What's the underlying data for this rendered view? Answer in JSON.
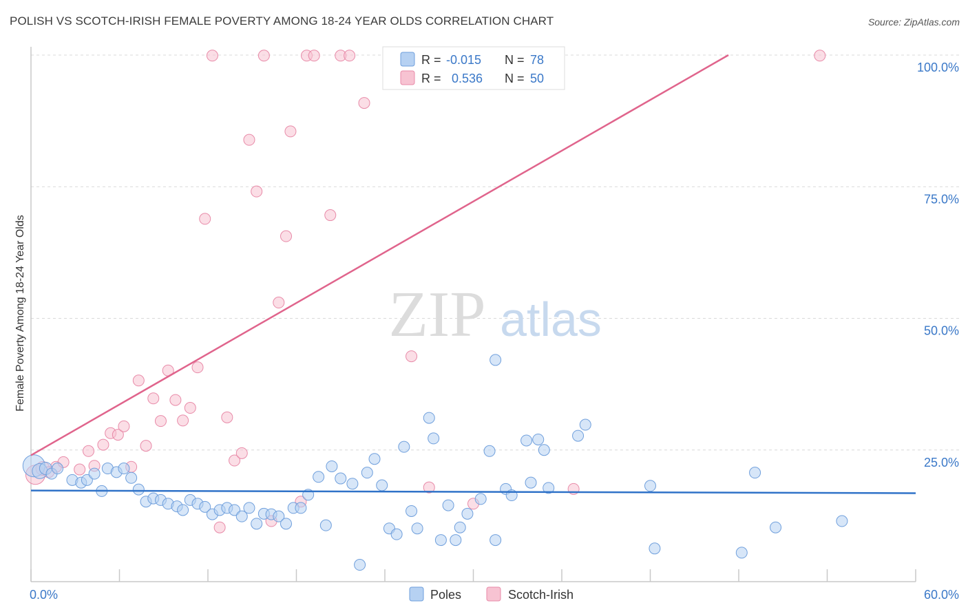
{
  "header": {
    "title": "POLISH VS SCOTCH-IRISH FEMALE POVERTY AMONG 18-24 YEAR OLDS CORRELATION CHART",
    "source": "Source: ZipAtlas.com"
  },
  "watermark": {
    "zip": "ZIP",
    "atlas": "atlas"
  },
  "colors": {
    "poles_fill": "#b6d1f2",
    "poles_stroke": "#6f9fdc",
    "poles_line": "#2f72c8",
    "scotch_fill": "#f7c3d2",
    "scotch_stroke": "#e88aa8",
    "scotch_line": "#e0648c",
    "axis_text": "#3a78c8",
    "grid": "#d9d9d9"
  },
  "legend": {
    "poles": {
      "r_label": "R =",
      "r_value": "-0.015",
      "n_label": "N =",
      "n_value": "78"
    },
    "scotch": {
      "r_label": "R =",
      "r_value": "0.536",
      "n_label": "N =",
      "n_value": "50"
    }
  },
  "chart_data": {
    "type": "scatter",
    "xlabel": "",
    "ylabel": "Female Poverty Among 18-24 Year Olds",
    "xlim": [
      0,
      60
    ],
    "ylim": [
      0,
      105
    ],
    "x_tick_labels": [
      "0.0%",
      "60.0%"
    ],
    "y_ticks": [
      25,
      50,
      75,
      100
    ],
    "y_tick_labels": [
      "25.0%",
      "50.0%",
      "75.0%",
      "100.0%"
    ],
    "grid": "horizontal dashed",
    "legend_position": "top-center",
    "bottom_legend": [
      "Poles",
      "Scotch-Irish"
    ],
    "series": [
      {
        "name": "Poles",
        "r": -0.015,
        "n": 78,
        "trend": {
          "x": [
            0,
            60
          ],
          "y": [
            17.3,
            16.8
          ]
        },
        "points": [
          [
            0.2,
            22.0,
            16
          ],
          [
            0.6,
            21.0,
            11
          ],
          [
            1.0,
            21.5,
            9
          ],
          [
            1.4,
            20.5,
            8
          ],
          [
            1.8,
            21.5,
            8
          ],
          [
            2.8,
            19.3,
            8
          ],
          [
            3.4,
            18.8,
            8
          ],
          [
            3.8,
            19.3,
            8
          ],
          [
            4.3,
            20.5,
            8
          ],
          [
            4.8,
            17.2,
            8
          ],
          [
            5.2,
            21.5,
            8
          ],
          [
            5.8,
            20.8,
            8
          ],
          [
            6.3,
            21.5,
            8
          ],
          [
            6.8,
            19.7,
            8
          ],
          [
            7.3,
            17.5,
            8
          ],
          [
            7.8,
            15.2,
            8
          ],
          [
            8.3,
            15.8,
            8
          ],
          [
            8.8,
            15.5,
            8
          ],
          [
            9.3,
            14.8,
            8
          ],
          [
            9.9,
            14.3,
            8
          ],
          [
            10.3,
            13.6,
            8
          ],
          [
            10.8,
            15.5,
            8
          ],
          [
            11.3,
            14.8,
            8
          ],
          [
            11.8,
            14.2,
            8
          ],
          [
            12.3,
            12.8,
            8
          ],
          [
            12.8,
            13.6,
            8
          ],
          [
            13.3,
            14.0,
            8
          ],
          [
            13.8,
            13.6,
            8
          ],
          [
            14.3,
            12.4,
            8
          ],
          [
            14.8,
            14.0,
            8
          ],
          [
            15.3,
            11.0,
            8
          ],
          [
            15.8,
            12.9,
            8
          ],
          [
            16.3,
            12.8,
            8
          ],
          [
            16.8,
            12.4,
            8
          ],
          [
            17.3,
            11.0,
            8
          ],
          [
            17.8,
            14.0,
            8
          ],
          [
            18.3,
            14.0,
            8
          ],
          [
            18.8,
            16.5,
            8
          ],
          [
            19.5,
            19.9,
            8
          ],
          [
            20.0,
            10.7,
            8
          ],
          [
            20.4,
            21.9,
            8
          ],
          [
            21.0,
            19.6,
            8
          ],
          [
            21.8,
            18.6,
            8
          ],
          [
            22.3,
            3.2,
            8
          ],
          [
            22.8,
            20.7,
            8
          ],
          [
            23.3,
            23.3,
            8
          ],
          [
            23.8,
            18.3,
            8
          ],
          [
            24.3,
            10.1,
            8
          ],
          [
            24.8,
            9.0,
            8
          ],
          [
            25.3,
            25.6,
            8
          ],
          [
            25.8,
            13.4,
            8
          ],
          [
            26.2,
            10.1,
            8
          ],
          [
            27.0,
            31.1,
            8
          ],
          [
            27.3,
            27.2,
            8
          ],
          [
            27.8,
            7.9,
            8
          ],
          [
            28.3,
            14.5,
            8
          ],
          [
            28.8,
            7.9,
            8
          ],
          [
            29.1,
            10.3,
            8
          ],
          [
            29.6,
            12.9,
            8
          ],
          [
            30.5,
            15.7,
            8
          ],
          [
            31.1,
            24.8,
            8
          ],
          [
            31.5,
            42.1,
            8
          ],
          [
            31.5,
            7.9,
            8
          ],
          [
            32.2,
            17.6,
            8
          ],
          [
            32.6,
            16.4,
            8
          ],
          [
            33.6,
            26.8,
            8
          ],
          [
            33.9,
            18.8,
            8
          ],
          [
            34.4,
            27.0,
            8
          ],
          [
            34.8,
            25.0,
            8
          ],
          [
            35.1,
            17.8,
            8
          ],
          [
            37.1,
            27.7,
            8
          ],
          [
            37.6,
            29.8,
            8
          ],
          [
            42.0,
            18.2,
            8
          ],
          [
            42.3,
            6.3,
            8
          ],
          [
            48.2,
            5.5,
            8
          ],
          [
            49.1,
            20.7,
            8
          ],
          [
            50.5,
            10.3,
            8
          ],
          [
            55.0,
            11.5,
            8
          ]
        ]
      },
      {
        "name": "Scotch-Irish",
        "r": 0.536,
        "n": 50,
        "trend": {
          "x": [
            0,
            47.3
          ],
          "y": [
            24.0,
            100.0
          ]
        },
        "points": [
          [
            0.3,
            20.3,
            14
          ],
          [
            0.8,
            21.5,
            10
          ],
          [
            1.2,
            20.8,
            8
          ],
          [
            1.7,
            21.8,
            8
          ],
          [
            2.2,
            22.7,
            8
          ],
          [
            3.3,
            21.3,
            8
          ],
          [
            3.9,
            24.8,
            8
          ],
          [
            4.3,
            22.0,
            8
          ],
          [
            4.9,
            26.0,
            8
          ],
          [
            5.4,
            28.2,
            8
          ],
          [
            5.9,
            27.9,
            8
          ],
          [
            6.3,
            29.5,
            8
          ],
          [
            6.8,
            21.8,
            8
          ],
          [
            7.3,
            38.2,
            8
          ],
          [
            7.8,
            25.8,
            8
          ],
          [
            8.3,
            34.8,
            8
          ],
          [
            8.8,
            30.5,
            8
          ],
          [
            9.3,
            40.1,
            8
          ],
          [
            9.8,
            34.5,
            8
          ],
          [
            10.3,
            30.6,
            8
          ],
          [
            10.8,
            33.0,
            8
          ],
          [
            11.3,
            40.7,
            8
          ],
          [
            11.8,
            68.9,
            8
          ],
          [
            12.3,
            99.9,
            8
          ],
          [
            12.8,
            10.3,
            8
          ],
          [
            13.3,
            31.2,
            8
          ],
          [
            13.8,
            23.0,
            8
          ],
          [
            14.3,
            24.4,
            8
          ],
          [
            14.8,
            83.9,
            8
          ],
          [
            15.3,
            74.1,
            8
          ],
          [
            15.8,
            99.9,
            8
          ],
          [
            16.3,
            11.5,
            8
          ],
          [
            16.8,
            53.0,
            8
          ],
          [
            17.3,
            65.6,
            8
          ],
          [
            17.6,
            85.5,
            8
          ],
          [
            18.3,
            15.2,
            8
          ],
          [
            18.7,
            99.9,
            8
          ],
          [
            19.2,
            99.9,
            8
          ],
          [
            20.3,
            69.6,
            8
          ],
          [
            21.0,
            99.9,
            8
          ],
          [
            21.6,
            99.9,
            8
          ],
          [
            22.6,
            90.9,
            8
          ],
          [
            25.0,
            99.9,
            8
          ],
          [
            25.8,
            42.8,
            8
          ],
          [
            27.0,
            17.9,
            8
          ],
          [
            28.0,
            99.9,
            8
          ],
          [
            30.0,
            14.8,
            8
          ],
          [
            33.0,
            99.9,
            8
          ],
          [
            36.8,
            17.6,
            8
          ],
          [
            53.5,
            99.9,
            8
          ]
        ]
      }
    ]
  }
}
